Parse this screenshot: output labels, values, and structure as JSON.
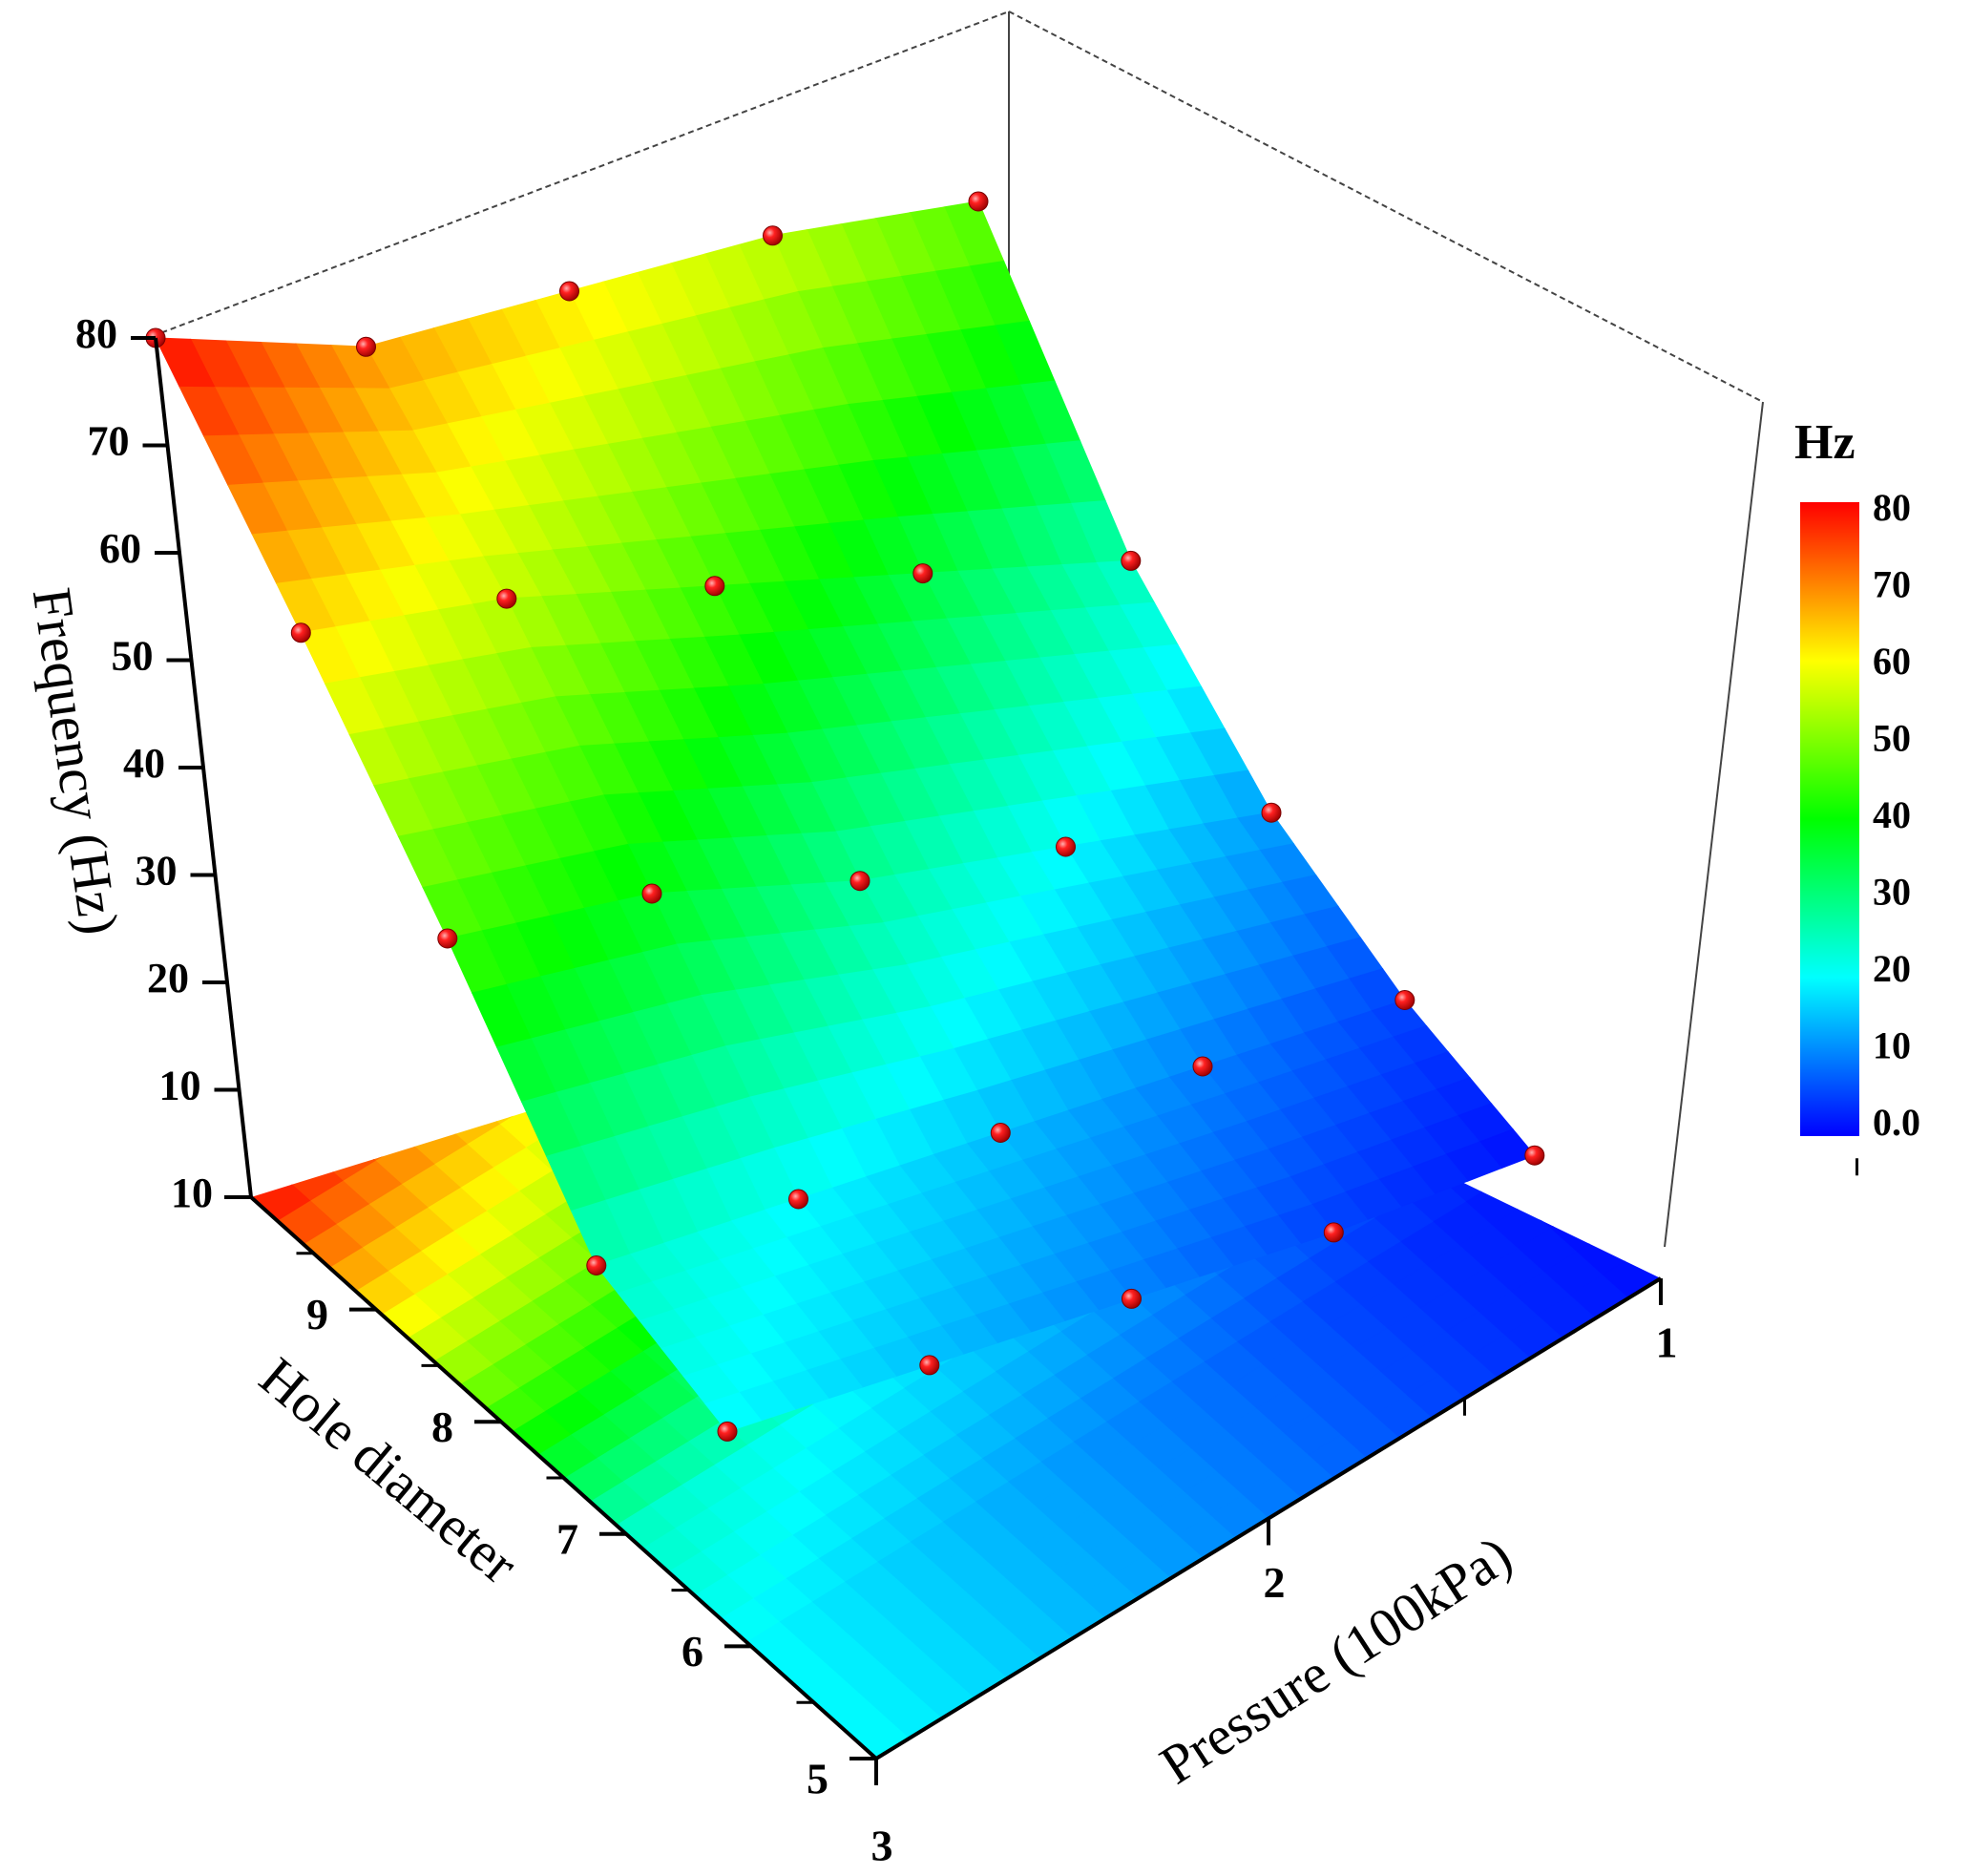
{
  "chart_data": {
    "type": "surface3d",
    "xlabel": "Pressure (100kPa)",
    "ylabel": "Hole diameter",
    "zlabel": "Frequency (Hz)",
    "x_ticks": [
      "1",
      "2",
      "3"
    ],
    "y_ticks": [
      "5",
      "6",
      "7",
      "8",
      "9",
      "10"
    ],
    "z_ticks": [
      "10",
      "10",
      "20",
      "30",
      "40",
      "50",
      "60",
      "70",
      "80"
    ],
    "pressure": [
      1,
      1.5,
      2,
      2.5,
      3
    ],
    "hole_diameter": [
      6,
      7,
      8,
      9,
      10
    ],
    "frequency": [
      [
        1,
        5,
        10,
        15,
        20
      ],
      [
        5,
        10,
        15,
        20,
        25
      ],
      [
        12,
        20,
        28,
        38,
        45
      ],
      [
        25,
        35,
        45,
        55,
        63
      ],
      [
        48,
        56,
        62,
        68,
        80
      ]
    ],
    "xlim": [
      1,
      3
    ],
    "ylim": [
      5,
      10
    ],
    "zlim": [
      0,
      80
    ],
    "floor_map": "projected surface color",
    "marker_color": "#e00000",
    "colorbar": {
      "title": "Hz",
      "ticks": [
        "0.0",
        "10",
        "20",
        "30",
        "40",
        "50",
        "60",
        "70",
        "80"
      ],
      "range": [
        0,
        80
      ],
      "colors": [
        "#0000ff",
        "#00ffff",
        "#00ff00",
        "#ffff00",
        "#ff0000"
      ]
    }
  }
}
